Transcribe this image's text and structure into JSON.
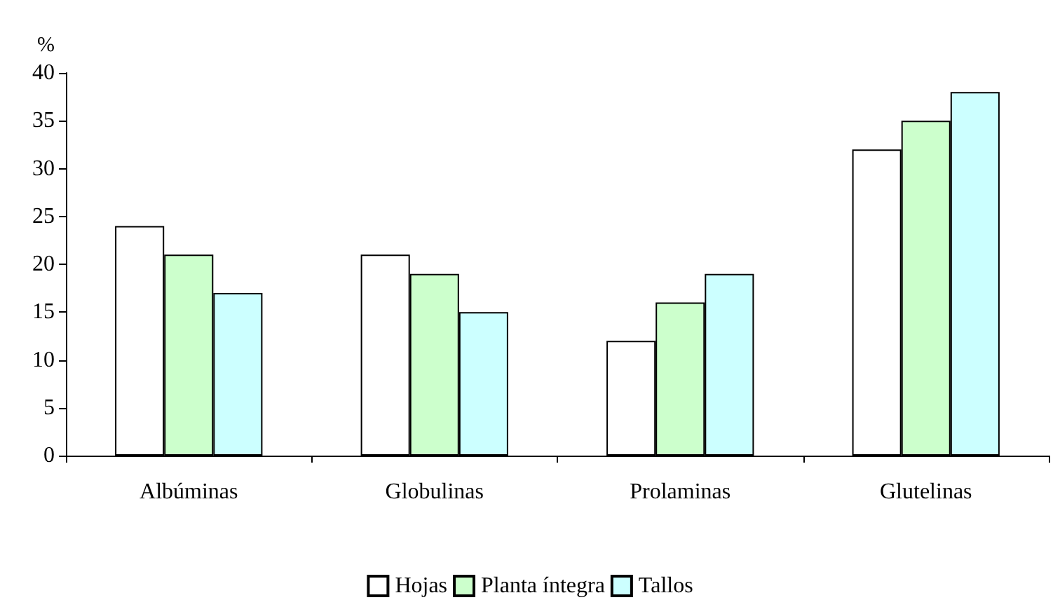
{
  "chart_data": {
    "type": "bar",
    "ylabel": "%",
    "categories": [
      "Albúminas",
      "Globulinas",
      "Prolaminas",
      "Glutelinas"
    ],
    "series": [
      {
        "name": "Hojas",
        "color": "#ffffff",
        "values": [
          24,
          21,
          12,
          32
        ]
      },
      {
        "name": "Planta íntegra",
        "color": "#ccffcc",
        "values": [
          21,
          19,
          16,
          35
        ]
      },
      {
        "name": "Tallos",
        "color": "#ccffff",
        "values": [
          17,
          15,
          19,
          38
        ]
      }
    ],
    "ylim": [
      0,
      40
    ],
    "yticks": [
      0,
      5,
      10,
      15,
      20,
      25,
      30,
      35,
      40
    ],
    "grid": false,
    "legend": "bottom"
  }
}
